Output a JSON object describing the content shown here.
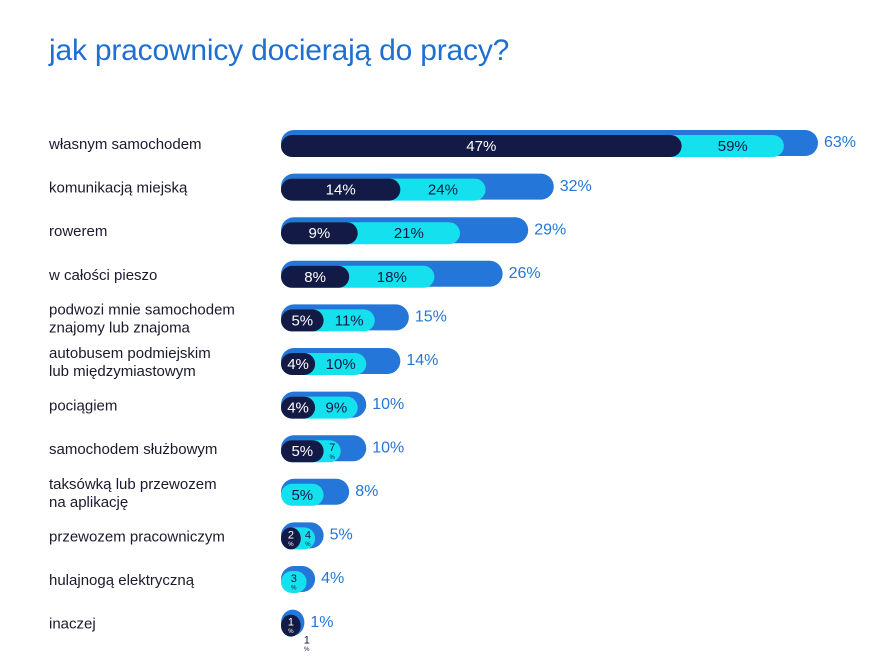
{
  "title": "jak pracownicy docierają do pracy?",
  "colors": {
    "outer": "#2476d8",
    "middle": "#14e0ee",
    "inner": "#131a45",
    "outer_label": "#2476d8",
    "category_text": "#1a1a2e",
    "title": "#1f6fd1"
  },
  "chart_data": {
    "type": "bar",
    "orientation": "horizontal",
    "title": "jak pracownicy docierają do pracy?",
    "categories": [
      "własnym samochodem",
      "komunikacją miejską",
      "rowerem",
      "w całości pieszo",
      "podwozi mnie samochodem znajomy lub znajoma",
      "autobusem podmiejskim lub międzymiastowym",
      "pociągiem",
      "samochodem służbowym",
      "taksówką lub przewozem na aplikację",
      "przewozem pracowniczym",
      "hulajnogą elektryczną",
      "inaczej"
    ],
    "category_lines": [
      [
        "własnym samochodem"
      ],
      [
        "komunikacją miejską"
      ],
      [
        "rowerem"
      ],
      [
        "w całości pieszo"
      ],
      [
        "podwozi mnie samochodem",
        "znajomy lub znajoma"
      ],
      [
        "autobusem podmiejskim",
        "lub międzymiastowym"
      ],
      [
        "pociągiem"
      ],
      [
        "samochodem służbowym"
      ],
      [
        "taksówką lub przewozem",
        "na aplikację"
      ],
      [
        "przewozem pracowniczym"
      ],
      [
        "hulajnogą elektryczną"
      ],
      [
        "inaczej"
      ]
    ],
    "series": [
      {
        "values": [
          63,
          32,
          29,
          26,
          15,
          14,
          10,
          10,
          8,
          5,
          4,
          1
        ]
      },
      {
        "values": [
          59,
          24,
          21,
          18,
          11,
          10,
          9,
          7,
          5,
          4,
          3,
          1
        ]
      },
      {
        "values": [
          47,
          14,
          9,
          8,
          5,
          4,
          4,
          5,
          null,
          2,
          null,
          1
        ]
      }
    ],
    "value_suffix": "%",
    "xlim": [
      0,
      63
    ]
  }
}
